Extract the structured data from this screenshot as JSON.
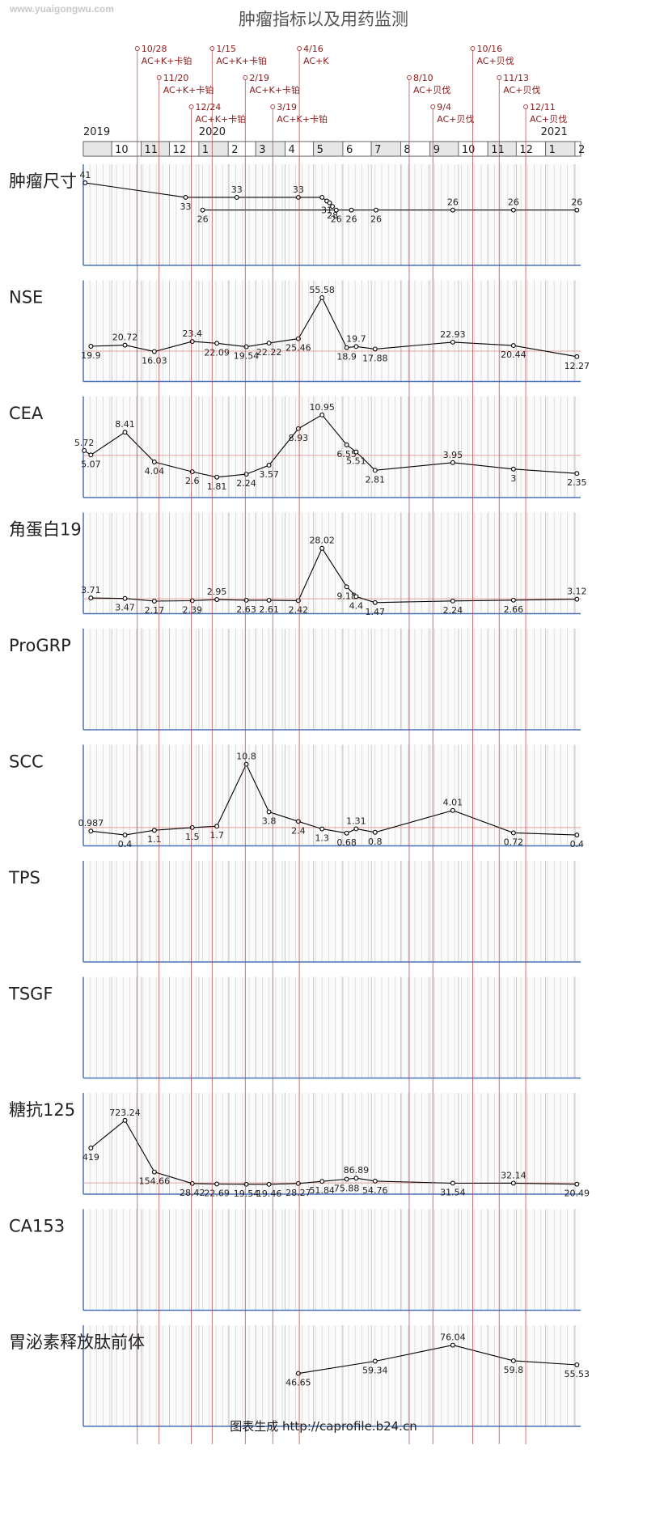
{
  "watermark": "www.yuaigongwu.com",
  "title": "肿瘤指标以及用药监测",
  "footer": "图表生成 http://caprofile.b24.cn",
  "colors": {
    "annotation": "#b04040",
    "line": "#000000",
    "axis": "#4a72b8",
    "reference": "#e8a0a0",
    "grid": "#d8d8d8",
    "header_bg": "#e6e6e6"
  },
  "chart_data": {
    "type": "line",
    "x_axis": {
      "start": "2019-09-01",
      "end": "2021-02-07",
      "year_labels": [
        {
          "label": "2019",
          "date": "2019-09-01"
        },
        {
          "label": "2020",
          "date": "2020-01-01"
        },
        {
          "label": "2021",
          "date": "2021-01-01"
        }
      ],
      "month_ticks": [
        "10",
        "11",
        "12",
        "1",
        "2",
        "3",
        "4",
        "5",
        "6",
        "7",
        "8",
        "9",
        "10",
        "11",
        "12",
        "1",
        "2"
      ]
    },
    "medication_annotations": [
      {
        "date": "2019-10-28",
        "label": "10/28",
        "regimen": "AC+K+卡铂",
        "tier": 0
      },
      {
        "date": "2019-11-20",
        "label": "11/20",
        "regimen": "AC+K+卡铂",
        "tier": 1
      },
      {
        "date": "2019-12-24",
        "label": "12/24",
        "regimen": "AC+K+卡铂",
        "tier": 2
      },
      {
        "date": "2020-01-15",
        "label": "1/15",
        "regimen": "AC+K+卡铂",
        "tier": 0
      },
      {
        "date": "2020-02-19",
        "label": "2/19",
        "regimen": "AC+K+卡铂",
        "tier": 1
      },
      {
        "date": "2020-03-19",
        "label": "3/19",
        "regimen": "AC+K+卡铂",
        "tier": 2
      },
      {
        "date": "2020-04-16",
        "label": "4/16",
        "regimen": "AC+K",
        "tier": 0
      },
      {
        "date": "2020-08-10",
        "label": "8/10",
        "regimen": "AC+贝伐",
        "tier": 1
      },
      {
        "date": "2020-09-04",
        "label": "9/4",
        "regimen": "AC+贝伐",
        "tier": 2
      },
      {
        "date": "2020-10-16",
        "label": "10/16",
        "regimen": "AC+贝伐",
        "tier": 0
      },
      {
        "date": "2020-11-13",
        "label": "11/13",
        "regimen": "AC+贝伐",
        "tier": 1
      },
      {
        "date": "2020-12-11",
        "label": "12/11",
        "regimen": "AC+贝伐",
        "tier": 2
      }
    ],
    "panels": [
      {
        "name": "肿瘤尺寸",
        "ylim": [
          0,
          45
        ],
        "reference": null,
        "series": [
          {
            "points": [
              {
                "x": "2019-09-03",
                "y": 41,
                "label": "41"
              },
              {
                "x": "2019-12-18",
                "y": 33,
                "label": "33"
              },
              {
                "x": "2020-02-10",
                "y": 33,
                "label": "33"
              },
              {
                "x": "2020-04-15",
                "y": 33,
                "label": "33"
              },
              {
                "x": "2020-05-10",
                "y": 33,
                "label": ""
              },
              {
                "x": "2020-05-15",
                "y": 31,
                "label": "31"
              },
              {
                "x": "2020-05-18",
                "y": 30,
                "label": ""
              },
              {
                "x": "2020-05-21",
                "y": 28,
                "label": "28"
              }
            ]
          },
          {
            "points": [
              {
                "x": "2020-01-05",
                "y": 26,
                "label": "26"
              },
              {
                "x": "2020-05-25",
                "y": 26,
                "label": "26"
              },
              {
                "x": "2020-06-10",
                "y": 26,
                "label": "26"
              },
              {
                "x": "2020-07-06",
                "y": 26,
                "label": "26"
              },
              {
                "x": "2020-09-25",
                "y": 26,
                "label": "26"
              },
              {
                "x": "2020-11-28",
                "y": 26,
                "label": "26"
              },
              {
                "x": "2021-02-03",
                "y": 26,
                "label": "26"
              }
            ]
          }
        ]
      },
      {
        "name": "NSE",
        "ylim": [
          0,
          60
        ],
        "reference": 16.3,
        "series": [
          {
            "points": [
              {
                "x": "2019-09-09",
                "y": 19.9,
                "label": "19.9"
              },
              {
                "x": "2019-10-15",
                "y": 20.72,
                "label": "20.72"
              },
              {
                "x": "2019-11-15",
                "y": 16.03,
                "label": "16.03"
              },
              {
                "x": "2019-12-25",
                "y": 23.4,
                "label": "23.4"
              },
              {
                "x": "2020-01-20",
                "y": 22.09,
                "label": "22.09"
              },
              {
                "x": "2020-02-20",
                "y": 19.54,
                "label": "19.54"
              },
              {
                "x": "2020-03-15",
                "y": 22.22,
                "label": "22.22"
              },
              {
                "x": "2020-04-15",
                "y": 25.46,
                "label": "25.46"
              },
              {
                "x": "2020-05-10",
                "y": 55.58,
                "label": "55.58"
              },
              {
                "x": "2020-06-05",
                "y": 18.9,
                "label": "18.9"
              },
              {
                "x": "2020-06-15",
                "y": 19.7,
                "label": "19.7"
              },
              {
                "x": "2020-07-05",
                "y": 17.88,
                "label": "17.88"
              },
              {
                "x": "2020-09-25",
                "y": 22.93,
                "label": "22.93"
              },
              {
                "x": "2020-11-28",
                "y": 20.44,
                "label": "20.44"
              },
              {
                "x": "2021-02-03",
                "y": 12.27,
                "label": "12.27"
              }
            ]
          }
        ]
      },
      {
        "name": "CEA",
        "ylim": [
          0,
          12
        ],
        "reference": 5.0,
        "series": [
          {
            "points": [
              {
                "x": "2019-09-02",
                "y": 5.72,
                "label": "5.72"
              },
              {
                "x": "2019-09-09",
                "y": 5.07,
                "label": "5.07"
              },
              {
                "x": "2019-10-15",
                "y": 8.41,
                "label": "8.41"
              },
              {
                "x": "2019-11-15",
                "y": 4.04,
                "label": "4.04"
              },
              {
                "x": "2019-12-25",
                "y": 2.6,
                "label": "2.6"
              },
              {
                "x": "2020-01-20",
                "y": 1.81,
                "label": "1.81"
              },
              {
                "x": "2020-02-20",
                "y": 2.24,
                "label": "2.24"
              },
              {
                "x": "2020-03-15",
                "y": 3.57,
                "label": "3.57"
              },
              {
                "x": "2020-04-15",
                "y": 8.93,
                "label": "8.93"
              },
              {
                "x": "2020-05-10",
                "y": 10.95,
                "label": "10.95"
              },
              {
                "x": "2020-06-05",
                "y": 6.55,
                "label": "6.55"
              },
              {
                "x": "2020-06-15",
                "y": 5.51,
                "label": "5.51"
              },
              {
                "x": "2020-07-05",
                "y": 2.81,
                "label": "2.81"
              },
              {
                "x": "2020-09-25",
                "y": 3.95,
                "label": "3.95"
              },
              {
                "x": "2020-11-28",
                "y": 3,
                "label": "3"
              },
              {
                "x": "2021-02-03",
                "y": 2.35,
                "label": "2.35"
              }
            ]
          }
        ]
      },
      {
        "name": "角蛋白19",
        "ylim": [
          0,
          40
        ],
        "reference": 3.3,
        "series": [
          {
            "points": [
              {
                "x": "2019-09-09",
                "y": 3.71,
                "label": "3.71"
              },
              {
                "x": "2019-10-15",
                "y": 3.47,
                "label": "3.47"
              },
              {
                "x": "2019-11-15",
                "y": 2.17,
                "label": "2.17"
              },
              {
                "x": "2019-12-25",
                "y": 2.39,
                "label": "2.39"
              },
              {
                "x": "2020-01-20",
                "y": 2.95,
                "label": "2.95"
              },
              {
                "x": "2020-02-20",
                "y": 2.63,
                "label": "2.63"
              },
              {
                "x": "2020-03-15",
                "y": 2.61,
                "label": "2.61"
              },
              {
                "x": "2020-04-15",
                "y": 2.42,
                "label": "2.42"
              },
              {
                "x": "2020-05-10",
                "y": 28.02,
                "label": "28.02"
              },
              {
                "x": "2020-06-05",
                "y": 9.18,
                "label": "9.18"
              },
              {
                "x": "2020-06-15",
                "y": 4.4,
                "label": "4.4"
              },
              {
                "x": "2020-07-05",
                "y": 1.47,
                "label": "1.47"
              },
              {
                "x": "2020-09-25",
                "y": 2.24,
                "label": "2.24"
              },
              {
                "x": "2020-11-28",
                "y": 2.66,
                "label": "2.66"
              },
              {
                "x": "2021-02-03",
                "y": 3.12,
                "label": "3.12"
              }
            ]
          }
        ]
      },
      {
        "name": "ProGRP",
        "ylim": [
          0,
          10
        ],
        "reference": null,
        "series": []
      },
      {
        "name": "SCC",
        "ylim": [
          0,
          12
        ],
        "reference": 1.5,
        "series": [
          {
            "points": [
              {
                "x": "2019-09-09",
                "y": 0.987,
                "label": "0.987"
              },
              {
                "x": "2019-10-15",
                "y": 0.4,
                "label": "0.4"
              },
              {
                "x": "2019-11-15",
                "y": 1.1,
                "label": "1.1"
              },
              {
                "x": "2019-12-25",
                "y": 1.5,
                "label": "1.5"
              },
              {
                "x": "2020-01-20",
                "y": 1.7,
                "label": "1.7"
              },
              {
                "x": "2020-02-20",
                "y": 10.8,
                "label": "10.8"
              },
              {
                "x": "2020-03-15",
                "y": 3.8,
                "label": "3.8"
              },
              {
                "x": "2020-04-15",
                "y": 2.4,
                "label": "2.4"
              },
              {
                "x": "2020-05-10",
                "y": 1.3,
                "label": "1.3"
              },
              {
                "x": "2020-06-05",
                "y": 0.68,
                "label": "0.68"
              },
              {
                "x": "2020-06-15",
                "y": 1.31,
                "label": "1.31"
              },
              {
                "x": "2020-07-05",
                "y": 0.8,
                "label": "0.8"
              },
              {
                "x": "2020-09-25",
                "y": 4.01,
                "label": "4.01"
              },
              {
                "x": "2020-11-28",
                "y": 0.72,
                "label": "0.72"
              },
              {
                "x": "2021-02-03",
                "y": 0.4,
                "label": "0.4"
              }
            ]
          }
        ]
      },
      {
        "name": "TPS",
        "ylim": [
          0,
          10
        ],
        "reference": null,
        "series": []
      },
      {
        "name": "TSGF",
        "ylim": [
          0,
          10
        ],
        "reference": null,
        "series": []
      },
      {
        "name": "糖抗125",
        "ylim": [
          0,
          900
        ],
        "reference": 35,
        "series": [
          {
            "points": [
              {
                "x": "2019-09-09",
                "y": 419,
                "label": "419"
              },
              {
                "x": "2019-10-15",
                "y": 723.24,
                "label": "723.24"
              },
              {
                "x": "2019-11-15",
                "y": 154.66,
                "label": "154.66"
              },
              {
                "x": "2019-12-25",
                "y": 28.42,
                "label": "28.42"
              },
              {
                "x": "2020-01-20",
                "y": 22.69,
                "label": "22.69"
              },
              {
                "x": "2020-02-20",
                "y": 19.54,
                "label": "19.54"
              },
              {
                "x": "2020-03-15",
                "y": 19.46,
                "label": "19.46"
              },
              {
                "x": "2020-04-15",
                "y": 28.27,
                "label": "28.27"
              },
              {
                "x": "2020-05-10",
                "y": 51.84,
                "label": "51.84"
              },
              {
                "x": "2020-06-05",
                "y": 75.88,
                "label": "75.88"
              },
              {
                "x": "2020-06-15",
                "y": 86.89,
                "label": "86.89"
              },
              {
                "x": "2020-07-05",
                "y": 54.76,
                "label": "54.76"
              },
              {
                "x": "2020-09-25",
                "y": 31.54,
                "label": "31.54"
              },
              {
                "x": "2020-11-28",
                "y": 32.14,
                "label": "32.14"
              },
              {
                "x": "2021-02-03",
                "y": 20.49,
                "label": "20.49"
              }
            ]
          }
        ]
      },
      {
        "name": "CA153",
        "ylim": [
          0,
          10
        ],
        "reference": null,
        "series": []
      },
      {
        "name": "胃泌素释放肽前体",
        "ylim": [
          0,
          85
        ],
        "reference": null,
        "series": [
          {
            "points": [
              {
                "x": "2020-04-15",
                "y": 46.65,
                "label": "46.65"
              },
              {
                "x": "2020-07-05",
                "y": 59.34,
                "label": "59.34"
              },
              {
                "x": "2020-09-25",
                "y": 76.04,
                "label": "76.04"
              },
              {
                "x": "2020-11-28",
                "y": 59.8,
                "label": "59.8"
              },
              {
                "x": "2021-02-03",
                "y": 55.53,
                "label": "55.53"
              }
            ]
          }
        ]
      }
    ]
  }
}
